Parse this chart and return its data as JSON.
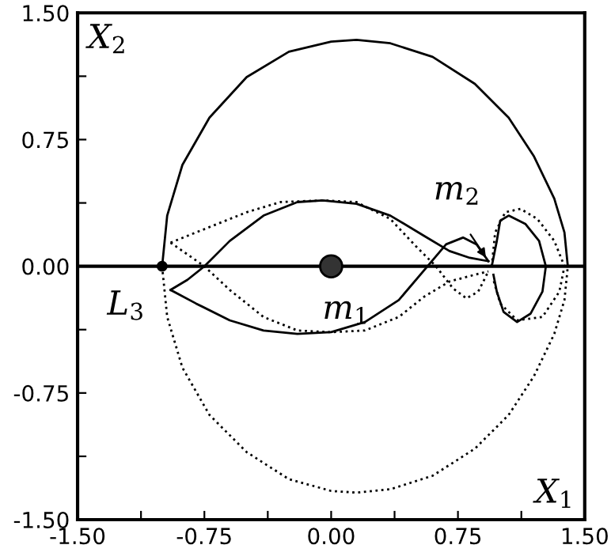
{
  "chart_data": {
    "type": "line",
    "xlim": [
      -1.5,
      1.5
    ],
    "ylim": [
      -1.5,
      1.5
    ],
    "xticks": [
      {
        "value": -1.5,
        "label": "-1.50"
      },
      {
        "value": -1.125,
        "label": null
      },
      -0.75,
      {
        "value": -0.375,
        "label": null
      },
      {
        "value": 0,
        "label": "0.00"
      },
      {
        "value": 0.375,
        "label": null
      },
      0.75,
      {
        "value": 1.125,
        "label": null
      },
      {
        "value": 1.5,
        "label": "1.50"
      }
    ],
    "yticks": [
      {
        "value": -1.5,
        "label": "-1.50"
      },
      {
        "value": -1.125,
        "label": null
      },
      -0.75,
      {
        "value": -0.375,
        "label": null
      },
      {
        "value": 0,
        "label": "0.00"
      },
      {
        "value": 0.375,
        "label": null
      },
      0.75,
      {
        "value": 1.125,
        "label": null
      },
      {
        "value": 1.5,
        "label": "1.50"
      }
    ],
    "grid": false,
    "legend": false,
    "ref_lines": [
      {
        "axis": "y",
        "value": 0,
        "color": "#000000",
        "line_style": "solid"
      }
    ],
    "series": [
      {
        "color": "#000000",
        "line_style": "solid",
        "x": [
          -1.0,
          -0.97,
          -0.88,
          -0.72,
          -0.5,
          -0.25,
          0.0,
          0.15,
          0.35,
          0.6,
          0.85,
          1.05,
          1.2,
          1.32,
          1.38,
          1.4
        ],
        "values": [
          0,
          0.3,
          0.6,
          0.88,
          1.12,
          1.27,
          1.33,
          1.34,
          1.32,
          1.24,
          1.08,
          0.88,
          0.65,
          0.4,
          0.2,
          0
        ]
      },
      {
        "color": "#000000",
        "line_style": "dotted",
        "x": [
          -1.0,
          -0.97,
          -0.88,
          -0.72,
          -0.5,
          -0.25,
          0.0,
          0.15,
          0.35,
          0.6,
          0.85,
          1.05,
          1.2,
          1.32,
          1.38,
          1.4
        ],
        "values": [
          0,
          -0.3,
          -0.6,
          -0.88,
          -1.1,
          -1.26,
          -1.33,
          -1.34,
          -1.32,
          -1.24,
          -1.08,
          -0.88,
          -0.65,
          -0.4,
          -0.2,
          0
        ]
      },
      {
        "color": "#000000",
        "line_style": "solid",
        "x": [
          -0.95,
          -0.85,
          -0.75,
          -0.6,
          -0.4,
          -0.2,
          -0.05,
          0.15,
          0.35,
          0.55,
          0.7,
          0.82,
          0.93
        ],
        "values": [
          -0.14,
          -0.08,
          0.0,
          0.15,
          0.3,
          0.38,
          0.39,
          0.37,
          0.3,
          0.18,
          0.09,
          0.05,
          0.03
        ]
      },
      {
        "color": "#000000",
        "line_style": "solid",
        "x": [
          -0.95,
          -0.8,
          -0.6,
          -0.4,
          -0.2,
          0.0,
          0.2,
          0.4,
          0.57,
          0.68,
          0.78,
          0.86,
          0.93
        ],
        "values": [
          -0.14,
          -0.22,
          -0.32,
          -0.38,
          -0.4,
          -0.39,
          -0.33,
          -0.2,
          0.0,
          0.13,
          0.17,
          0.13,
          0.03
        ]
      },
      {
        "color": "#000000",
        "line_style": "solid",
        "x": [
          0.95,
          0.98,
          1.0,
          1.05,
          1.15,
          1.23,
          1.27,
          1.25,
          1.18,
          1.1,
          1.02,
          0.98,
          0.96
        ],
        "values": [
          0.0,
          0.15,
          0.27,
          0.3,
          0.25,
          0.15,
          0.0,
          -0.15,
          -0.28,
          -0.33,
          -0.27,
          -0.15,
          -0.05
        ]
      },
      {
        "color": "#000000",
        "line_style": "dotted",
        "x": [
          -0.95,
          -0.75,
          -0.5,
          -0.3,
          -0.05,
          0.15,
          0.35,
          0.5,
          0.62,
          0.72,
          0.8,
          0.87,
          0.93
        ],
        "values": [
          0.14,
          0.22,
          0.32,
          0.38,
          0.39,
          0.38,
          0.28,
          0.12,
          0.0,
          -0.13,
          -0.19,
          -0.15,
          -0.03
        ]
      },
      {
        "color": "#000000",
        "line_style": "dotted",
        "x": [
          -0.95,
          -0.85,
          -0.75,
          -0.6,
          -0.4,
          -0.2,
          0.0,
          0.2,
          0.4,
          0.55,
          0.7,
          0.85,
          0.93
        ],
        "values": [
          0.14,
          0.07,
          0.0,
          -0.14,
          -0.3,
          -0.38,
          -0.39,
          -0.38,
          -0.3,
          -0.18,
          -0.09,
          -0.05,
          -0.03
        ]
      },
      {
        "color": "#000000",
        "line_style": "dotted",
        "x": [
          0.95,
          0.97,
          1.03,
          1.12,
          1.22,
          1.32,
          1.38,
          1.35,
          1.25,
          1.1,
          1.0,
          0.96
        ],
        "values": [
          0.0,
          0.2,
          0.32,
          0.34,
          0.28,
          0.15,
          0.0,
          -0.15,
          -0.3,
          -0.32,
          -0.22,
          -0.08
        ]
      },
      {
        "type": "scatter",
        "marker": "circle",
        "color": "#333333",
        "x": [
          0.0
        ],
        "values": [
          0.0
        ]
      },
      {
        "type": "scatter",
        "marker": "circle",
        "color": "#000000",
        "x": [
          -1.0
        ],
        "values": [
          0.0
        ]
      }
    ],
    "annotations": [
      {
        "text": "m$_{1}$",
        "x": 0.0,
        "y": 0.0
      },
      {
        "text": "m$_{2}$",
        "x": 0.93,
        "y": 0.03
      },
      {
        "text": "L$_{3}$",
        "x": -1.0,
        "y": 0.0
      },
      "X$_{2}$",
      "X$_{1}$"
    ]
  }
}
